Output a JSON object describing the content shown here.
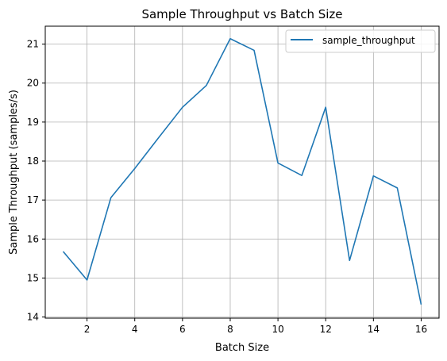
{
  "chart_data": {
    "type": "line",
    "title": "Sample Throughput vs Batch Size",
    "xlabel": "Batch Size",
    "ylabel": "Sample Throughput (samples/s)",
    "xlim": [
      0.25,
      16.75
    ],
    "ylim": [
      13.97,
      21.46
    ],
    "xticks": [
      2,
      4,
      6,
      8,
      10,
      12,
      14,
      16
    ],
    "yticks": [
      14,
      15,
      16,
      17,
      18,
      19,
      20,
      21
    ],
    "grid": true,
    "legend_position": "top-right",
    "series": [
      {
        "name": "sample_throughput",
        "color": "#1f77b4",
        "x": [
          1,
          2,
          3,
          4,
          5,
          6,
          7,
          8,
          9,
          10,
          11,
          12,
          13,
          14,
          15,
          16
        ],
        "y": [
          15.68,
          14.95,
          17.06,
          17.81,
          18.6,
          19.38,
          19.94,
          21.14,
          20.84,
          17.95,
          17.63,
          19.38,
          15.45,
          17.62,
          17.31,
          14.32
        ]
      }
    ]
  }
}
